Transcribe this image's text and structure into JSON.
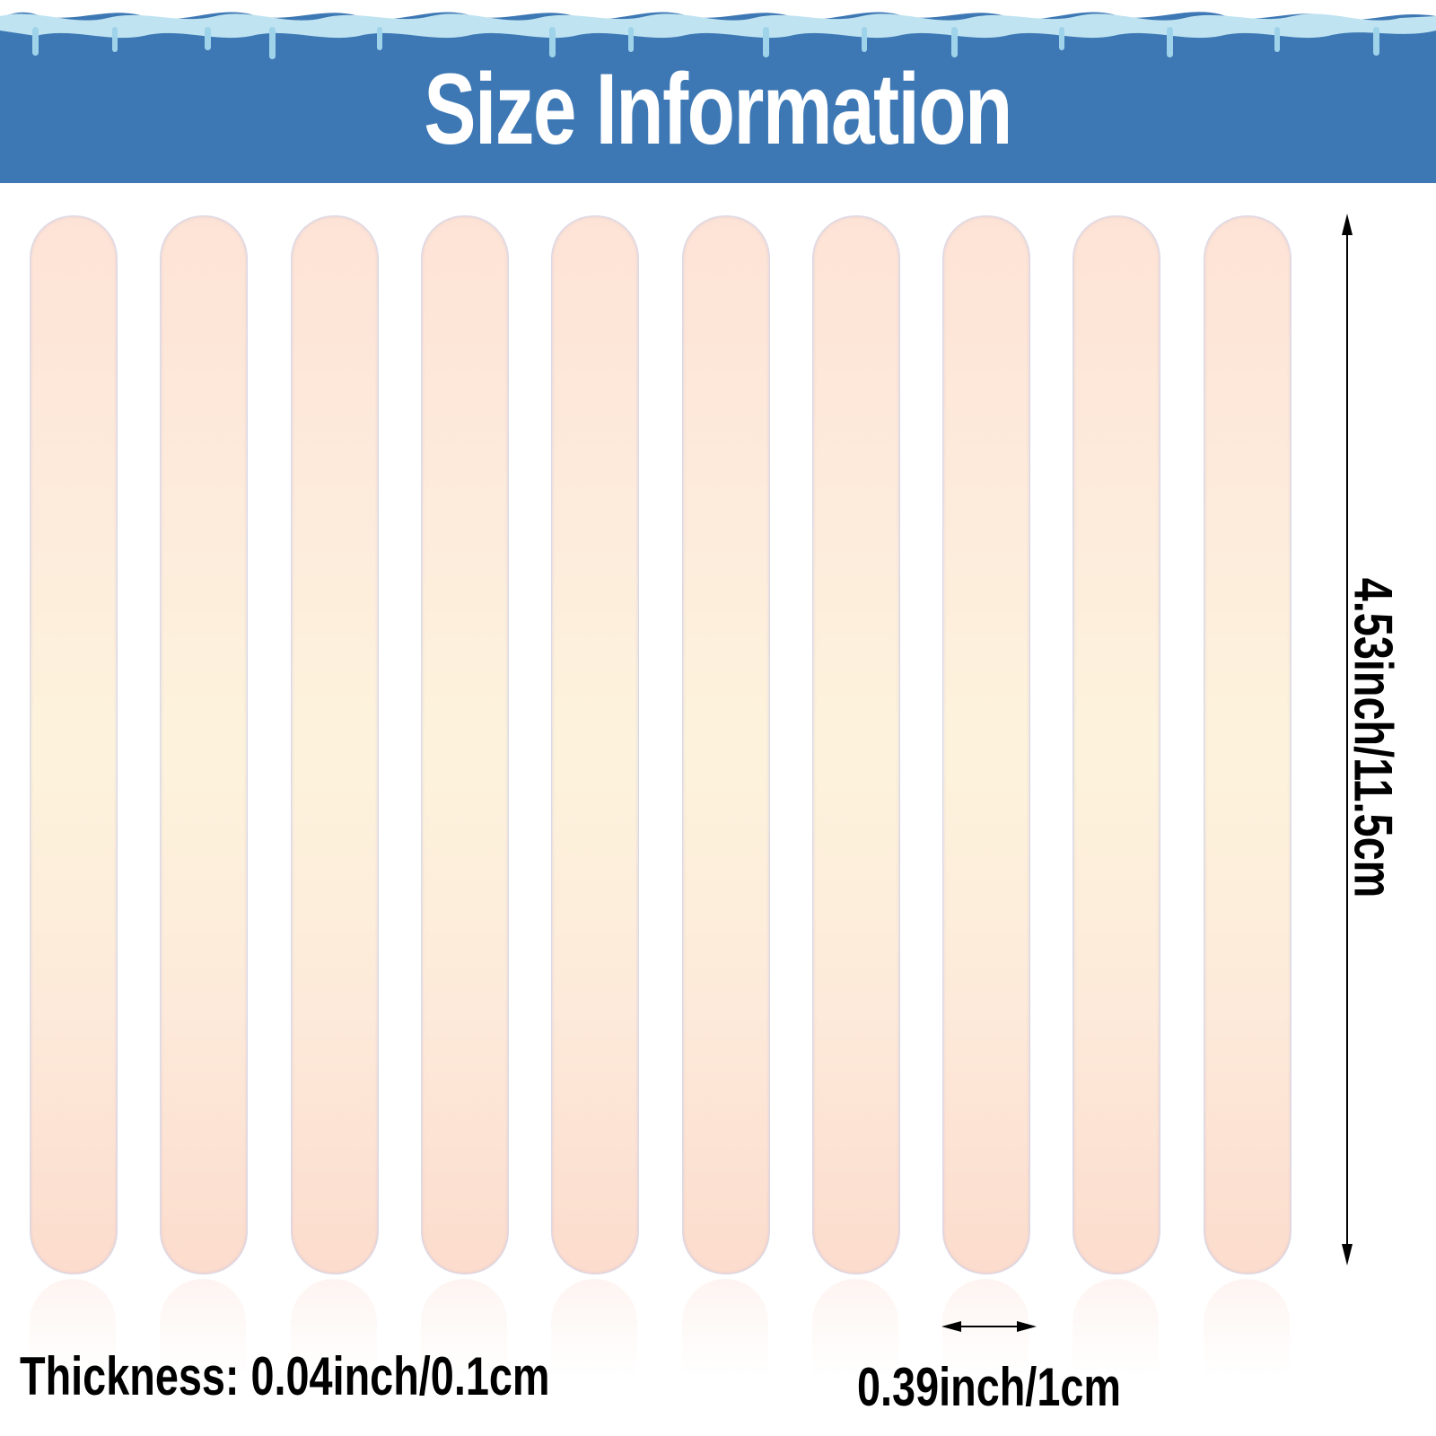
{
  "header": {
    "title": "Size Information",
    "color": "#3d78b5"
  },
  "product": {
    "stick_count": 10,
    "stick_color": "#fde8d8"
  },
  "dimensions": {
    "length": "4.53inch/11.5cm",
    "width": "0.39inch/1cm",
    "thickness": "Thickness: 0.04inch/0.1cm"
  }
}
